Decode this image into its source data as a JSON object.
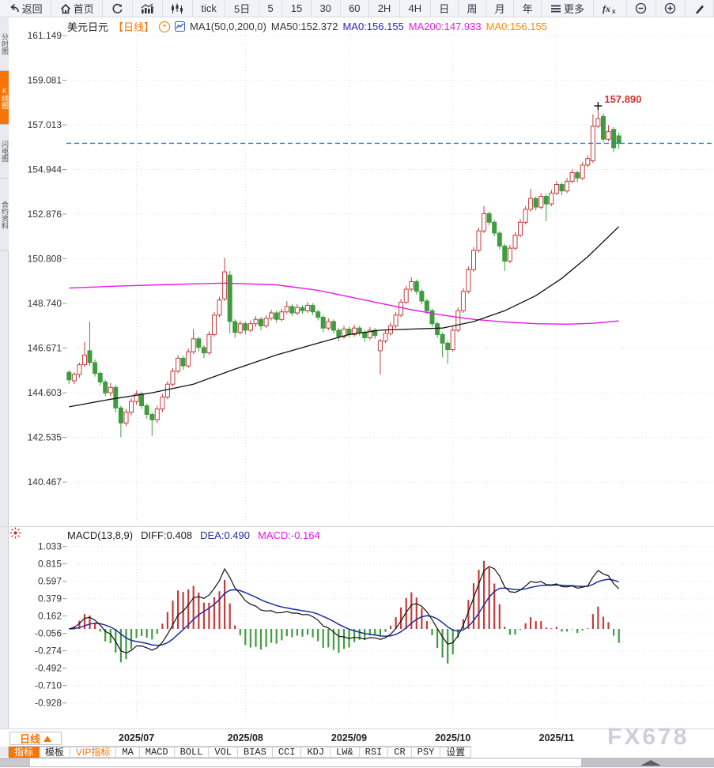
{
  "toolbar": {
    "items": [
      {
        "icon": "back-arrow",
        "label": "返回"
      },
      {
        "icon": "home",
        "label": "首页"
      },
      {
        "icon": "refresh",
        "label": ""
      },
      {
        "icon": "bar-chart",
        "label": ""
      },
      {
        "icon": "candles",
        "label": ""
      },
      {
        "icon": "",
        "label": "tick"
      },
      {
        "icon": "",
        "label": "5日"
      },
      {
        "icon": "",
        "label": "5"
      },
      {
        "icon": "",
        "label": "15"
      },
      {
        "icon": "",
        "label": "30"
      },
      {
        "icon": "",
        "label": "60"
      },
      {
        "icon": "",
        "label": "2H"
      },
      {
        "icon": "",
        "label": "4H"
      },
      {
        "icon": "",
        "label": "日"
      },
      {
        "icon": "",
        "label": "周"
      },
      {
        "icon": "",
        "label": "月"
      },
      {
        "icon": "",
        "label": "年"
      },
      {
        "icon": "menu",
        "label": "更多"
      },
      {
        "icon": "fx",
        "label": ""
      },
      {
        "icon": "zoom-out",
        "label": ""
      },
      {
        "icon": "zoom-in",
        "label": ""
      },
      {
        "icon": "pencil",
        "label": ""
      }
    ]
  },
  "sidebar": {
    "tabs": [
      {
        "label": "分时图",
        "active": false
      },
      {
        "label": "K线图",
        "active": true
      },
      {
        "label": "闪电图",
        "active": false
      },
      {
        "label": "合约资料",
        "active": false
      }
    ]
  },
  "title": {
    "symbol": "美元日元",
    "period": "【日线】",
    "ma_settings": "MA1(50,0,200,0)",
    "ma50": "MA50:152.372",
    "ma0_blue": "MA0:156.155",
    "ma200": "MA200:147.933",
    "ma0_orange": "MA0:156.155"
  },
  "macd_header": {
    "name": "MACD(13,8,9)",
    "diff": "DIFF:0.408",
    "dea": "DEA:0.490",
    "macd": "MACD:-0.164"
  },
  "bottom": {
    "period_selector": "日线",
    "tabs": [
      {
        "label": "指标",
        "active": true,
        "cjk": true
      },
      {
        "label": "模板",
        "active": false,
        "cjk": true
      },
      {
        "label": "VIP指标",
        "active": false,
        "vip": true,
        "cjk": true
      },
      {
        "label": "MA"
      },
      {
        "label": "MACD"
      },
      {
        "label": "BOLL"
      },
      {
        "label": "VOL"
      },
      {
        "label": "BIAS"
      },
      {
        "label": "CCI"
      },
      {
        "label": "KDJ"
      },
      {
        "label": "LW&"
      },
      {
        "label": "RSI"
      },
      {
        "label": "CR"
      },
      {
        "label": "PSY"
      },
      {
        "label": "设置",
        "cjk": true
      }
    ]
  },
  "watermark": "FX678",
  "colors": {
    "accent_orange": "#f87406",
    "up_candle": "#c43c3c",
    "down_candle": "#3f9c3f",
    "ma50_line": "#111111",
    "ma200_line": "#e619e6",
    "price_line": "#1f86d8",
    "dea_line": "#1c2f9e",
    "diff_line": "#111111",
    "grid": "#dcdce8"
  },
  "chart_data": {
    "type": "candlestick",
    "title": "USD/JPY daily candlestick chart with MA(50,200) and MACD(13,8,9)",
    "price_axis_ticks": [
      161.149,
      159.081,
      157.013,
      154.944,
      152.876,
      150.808,
      148.74,
      146.671,
      144.603,
      142.535,
      140.467
    ],
    "macd_axis_ticks": [
      1.033,
      0.815,
      0.597,
      0.379,
      0.162,
      -0.056,
      -0.274,
      -0.492,
      -0.71,
      -0.928
    ],
    "months": [
      {
        "label": "2025/07",
        "index": 13
      },
      {
        "label": "2025/08",
        "index": 34
      },
      {
        "label": "2025/09",
        "index": 54
      },
      {
        "label": "2025/10",
        "index": 74
      },
      {
        "label": "2025/11",
        "index": 94
      }
    ],
    "current_price": 156.155,
    "high_marker": {
      "index": 102,
      "price": 157.89,
      "label": "157.890"
    },
    "ma50": {
      "name": "MA50",
      "value": 152.372,
      "points": [
        [
          0,
          143.95
        ],
        [
          8,
          144.3
        ],
        [
          16,
          144.6
        ],
        [
          24,
          145.0
        ],
        [
          32,
          145.7
        ],
        [
          40,
          146.35
        ],
        [
          48,
          146.9
        ],
        [
          54,
          147.3
        ],
        [
          60,
          147.5
        ],
        [
          66,
          147.55
        ],
        [
          72,
          147.6
        ],
        [
          78,
          147.9
        ],
        [
          84,
          148.4
        ],
        [
          90,
          149.1
        ],
        [
          95,
          149.9
        ],
        [
          100,
          150.9
        ],
        [
          103,
          151.6
        ],
        [
          106,
          152.3
        ]
      ]
    },
    "ma200": {
      "name": "MA200",
      "value": 147.933,
      "points": [
        [
          0,
          149.45
        ],
        [
          10,
          149.55
        ],
        [
          20,
          149.62
        ],
        [
          30,
          149.68
        ],
        [
          40,
          149.6
        ],
        [
          48,
          149.35
        ],
        [
          54,
          149.05
        ],
        [
          60,
          148.75
        ],
        [
          66,
          148.45
        ],
        [
          72,
          148.2
        ],
        [
          78,
          148.0
        ],
        [
          84,
          147.88
        ],
        [
          90,
          147.8
        ],
        [
          96,
          147.78
        ],
        [
          101,
          147.82
        ],
        [
          106,
          147.93
        ]
      ]
    },
    "macd": {
      "params": [
        13,
        8,
        9
      ],
      "diff": 0.408,
      "dea": 0.49,
      "hist": -0.164
    },
    "candles": [
      [
        145.55,
        145.65,
        145.0,
        145.2
      ],
      [
        145.15,
        145.55,
        145.0,
        145.45
      ],
      [
        145.45,
        146.0,
        145.3,
        145.9
      ],
      [
        145.9,
        146.95,
        145.8,
        146.35
      ],
      [
        146.55,
        147.9,
        145.85,
        146.0
      ],
      [
        146.0,
        146.15,
        145.35,
        145.5
      ],
      [
        145.5,
        145.6,
        144.95,
        145.1
      ],
      [
        145.1,
        145.2,
        144.45,
        144.6
      ],
      [
        144.6,
        145.05,
        144.45,
        144.85
      ],
      [
        144.85,
        144.95,
        143.7,
        143.9
      ],
      [
        143.9,
        144.0,
        142.55,
        143.2
      ],
      [
        143.2,
        143.85,
        143.05,
        143.7
      ],
      [
        143.7,
        144.35,
        143.55,
        144.2
      ],
      [
        144.2,
        144.7,
        144.05,
        144.55
      ],
      [
        144.55,
        144.65,
        143.85,
        144.0
      ],
      [
        144.0,
        144.1,
        143.4,
        143.6
      ],
      [
        143.6,
        143.7,
        142.6,
        143.35
      ],
      [
        143.35,
        144.0,
        143.2,
        143.85
      ],
      [
        143.85,
        144.55,
        143.7,
        144.4
      ],
      [
        144.4,
        145.15,
        144.3,
        145.0
      ],
      [
        145.0,
        145.75,
        144.9,
        145.6
      ],
      [
        145.6,
        146.35,
        145.5,
        146.2
      ],
      [
        146.2,
        146.3,
        145.65,
        145.85
      ],
      [
        145.85,
        146.65,
        145.75,
        146.5
      ],
      [
        146.5,
        147.55,
        146.4,
        147.1
      ],
      [
        147.1,
        147.2,
        146.5,
        146.7
      ],
      [
        146.7,
        146.8,
        146.2,
        146.45
      ],
      [
        146.45,
        147.45,
        146.35,
        147.3
      ],
      [
        147.3,
        148.35,
        147.2,
        148.2
      ],
      [
        148.2,
        149.05,
        148.1,
        148.9
      ],
      [
        148.95,
        150.85,
        148.85,
        150.2
      ],
      [
        150.05,
        150.25,
        147.35,
        147.9
      ],
      [
        147.9,
        148.0,
        147.15,
        147.4
      ],
      [
        147.4,
        147.95,
        147.3,
        147.8
      ],
      [
        147.8,
        147.9,
        147.3,
        147.5
      ],
      [
        147.5,
        147.95,
        147.4,
        147.8
      ],
      [
        147.8,
        148.15,
        147.65,
        148.0
      ],
      [
        148.0,
        148.1,
        147.5,
        147.7
      ],
      [
        147.7,
        148.2,
        147.6,
        148.05
      ],
      [
        148.05,
        148.45,
        147.95,
        148.3
      ],
      [
        148.3,
        148.4,
        147.85,
        148.0
      ],
      [
        148.0,
        148.5,
        147.9,
        148.35
      ],
      [
        148.35,
        148.85,
        148.25,
        148.6
      ],
      [
        148.6,
        148.7,
        148.15,
        148.3
      ],
      [
        148.3,
        148.7,
        148.2,
        148.55
      ],
      [
        148.55,
        148.65,
        148.25,
        148.4
      ],
      [
        148.4,
        148.8,
        148.3,
        148.65
      ],
      [
        148.65,
        148.75,
        148.2,
        148.35
      ],
      [
        148.35,
        148.45,
        147.95,
        148.1
      ],
      [
        148.1,
        148.2,
        147.4,
        147.6
      ],
      [
        147.6,
        148.05,
        147.5,
        147.9
      ],
      [
        147.9,
        148.0,
        147.35,
        147.5
      ],
      [
        147.5,
        147.6,
        147.0,
        147.2
      ],
      [
        147.2,
        147.7,
        147.1,
        147.55
      ],
      [
        147.55,
        147.65,
        147.15,
        147.3
      ],
      [
        147.3,
        147.75,
        147.2,
        147.6
      ],
      [
        147.6,
        147.7,
        147.25,
        147.4
      ],
      [
        147.4,
        147.5,
        146.95,
        147.15
      ],
      [
        147.15,
        147.65,
        147.05,
        147.5
      ],
      [
        147.5,
        147.6,
        147.1,
        147.25
      ],
      [
        146.55,
        147.1,
        145.45,
        147.0
      ],
      [
        147.0,
        147.5,
        146.9,
        147.35
      ],
      [
        147.35,
        147.85,
        147.25,
        147.7
      ],
      [
        147.7,
        148.35,
        147.6,
        148.2
      ],
      [
        148.2,
        148.95,
        148.1,
        148.8
      ],
      [
        148.8,
        149.55,
        148.7,
        149.4
      ],
      [
        149.4,
        149.95,
        149.3,
        149.75
      ],
      [
        149.75,
        149.85,
        149.15,
        149.3
      ],
      [
        149.3,
        149.4,
        148.7,
        148.85
      ],
      [
        148.85,
        148.95,
        148.25,
        148.4
      ],
      [
        148.4,
        148.5,
        147.65,
        147.8
      ],
      [
        147.8,
        147.9,
        147.15,
        147.3
      ],
      [
        147.3,
        147.4,
        146.25,
        146.9
      ],
      [
        146.9,
        147.0,
        145.95,
        146.6
      ],
      [
        146.6,
        147.65,
        146.5,
        147.5
      ],
      [
        147.5,
        148.55,
        147.4,
        148.4
      ],
      [
        148.4,
        149.45,
        148.3,
        149.3
      ],
      [
        149.3,
        150.45,
        149.2,
        150.3
      ],
      [
        150.3,
        151.35,
        150.2,
        151.2
      ],
      [
        151.2,
        152.25,
        151.1,
        152.1
      ],
      [
        152.1,
        153.25,
        152.0,
        152.9
      ],
      [
        152.9,
        153.0,
        152.35,
        152.5
      ],
      [
        152.5,
        152.6,
        151.85,
        152.0
      ],
      [
        152.0,
        152.1,
        151.25,
        151.4
      ],
      [
        151.4,
        151.5,
        150.25,
        150.7
      ],
      [
        150.7,
        151.45,
        150.6,
        151.3
      ],
      [
        151.3,
        152.05,
        151.2,
        151.9
      ],
      [
        151.9,
        152.65,
        151.8,
        152.5
      ],
      [
        152.5,
        153.25,
        152.4,
        153.1
      ],
      [
        153.1,
        154.05,
        153.0,
        153.6
      ],
      [
        153.6,
        153.7,
        153.05,
        153.2
      ],
      [
        153.2,
        153.85,
        153.1,
        153.7
      ],
      [
        153.7,
        153.8,
        152.55,
        153.35
      ],
      [
        153.35,
        154.0,
        153.25,
        153.85
      ],
      [
        153.85,
        154.4,
        153.75,
        154.25
      ],
      [
        154.25,
        154.35,
        153.75,
        153.95
      ],
      [
        153.95,
        154.55,
        153.85,
        154.4
      ],
      [
        154.4,
        154.95,
        154.3,
        154.8
      ],
      [
        154.8,
        154.9,
        154.35,
        154.55
      ],
      [
        154.55,
        155.3,
        154.45,
        155.15
      ],
      [
        155.15,
        155.6,
        155.05,
        155.45
      ],
      [
        155.35,
        157.5,
        155.25,
        156.95
      ],
      [
        156.95,
        157.89,
        156.85,
        157.3
      ],
      [
        157.4,
        157.55,
        156.2,
        156.35
      ],
      [
        156.35,
        157.0,
        156.25,
        156.7
      ],
      [
        156.8,
        156.9,
        155.75,
        155.95
      ],
      [
        156.5,
        156.65,
        155.9,
        156.155
      ]
    ]
  }
}
